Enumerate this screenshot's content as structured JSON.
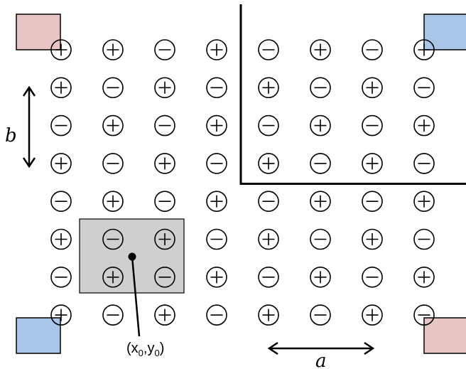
{
  "labels": {
    "b": "b",
    "a": "a",
    "point": "(x0,y0)",
    "point_x": "x",
    "point_x_sub": "0",
    "point_y": "y",
    "point_y_sub": "0"
  },
  "grid": {
    "rows": [
      [
        "+",
        "+",
        "-",
        "+",
        "-",
        "+",
        "-",
        "+"
      ],
      [
        "+",
        "-",
        "+",
        "-",
        "+",
        "-",
        "+",
        "-"
      ],
      [
        "-",
        "+",
        "-",
        "+",
        "-",
        "+",
        "-",
        "+"
      ],
      [
        "+",
        "-",
        "+",
        "-",
        "+",
        "-",
        "+",
        "-"
      ],
      [
        "-",
        "+",
        "-",
        "+",
        "-",
        "+",
        "-",
        "+"
      ],
      [
        "+",
        "-",
        "+",
        "-",
        "+",
        "-",
        "+",
        "-"
      ],
      [
        "-",
        "+",
        "-",
        "+",
        "-",
        "+",
        "-",
        "+"
      ],
      [
        "+",
        "-",
        "+",
        "-",
        "+",
        "-",
        "+",
        "-"
      ]
    ]
  },
  "colors": {
    "pink_square": "#e8c4c4",
    "blue_square": "#a9c6e8",
    "unit_cell": "#cfcfcf",
    "stroke": "#000000"
  }
}
